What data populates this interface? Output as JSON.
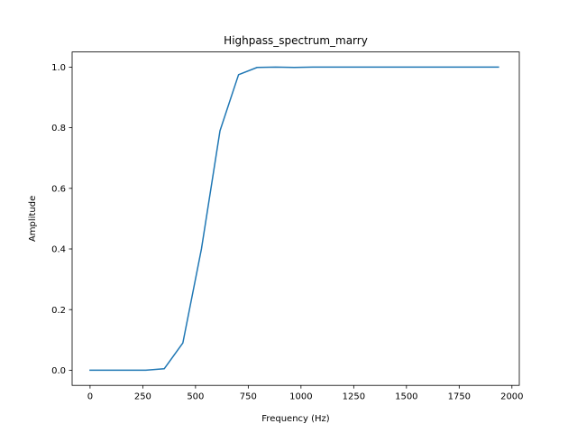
{
  "chart_data": {
    "type": "line",
    "title": "Highpass_spectrum_marry",
    "xlabel": "Frequency (Hz)",
    "ylabel": "Amplitude",
    "xlim": [
      -85,
      2035
    ],
    "ylim": [
      -0.05,
      1.05
    ],
    "xticks": [
      0,
      250,
      500,
      750,
      1000,
      1250,
      1500,
      1750,
      2000
    ],
    "xtick_labels": [
      "0",
      "250",
      "500",
      "750",
      "1000",
      "1250",
      "1500",
      "1750",
      "2000"
    ],
    "yticks": [
      0.0,
      0.2,
      0.4,
      0.6,
      0.8,
      1.0
    ],
    "ytick_labels": [
      "0.0",
      "0.2",
      "0.4",
      "0.6",
      "0.8",
      "1.0"
    ],
    "grid": false,
    "series": [
      {
        "color": "#1f77b4",
        "x": [
          0,
          88,
          176,
          264,
          352,
          440,
          528,
          616,
          704,
          792,
          880,
          968,
          1056,
          1144,
          1232,
          1320,
          1408,
          1496,
          1584,
          1672,
          1760,
          1848,
          1936
        ],
        "y": [
          0.0,
          0.0,
          0.0,
          0.0,
          0.005,
          0.09,
          0.4,
          0.79,
          0.975,
          0.999,
          1.0,
          0.999,
          1.0,
          1.0,
          1.0,
          1.0,
          1.0,
          1.0,
          1.0,
          1.0,
          1.0,
          1.0,
          1.0
        ]
      }
    ]
  }
}
